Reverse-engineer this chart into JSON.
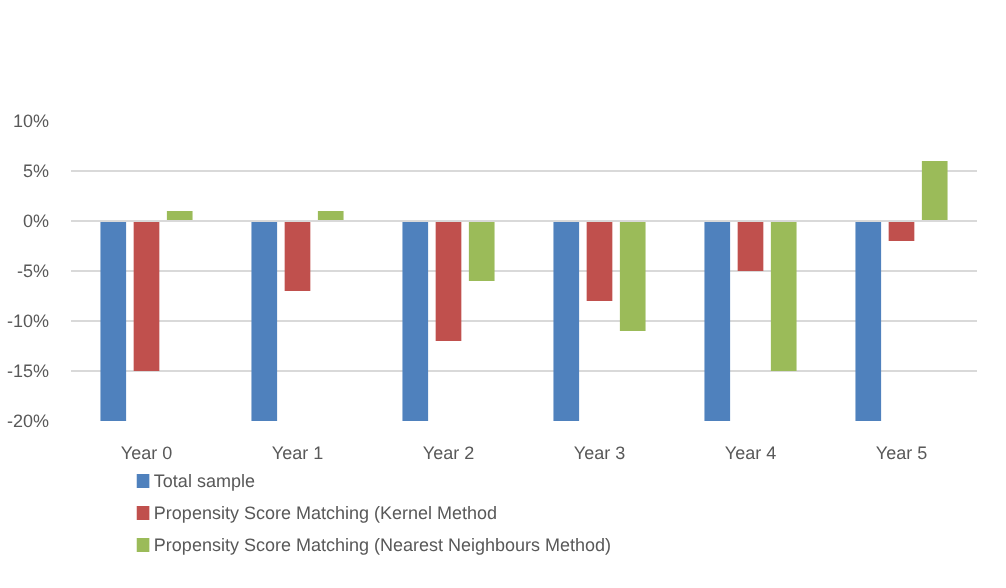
{
  "chart_data": {
    "type": "bar",
    "categories": [
      "Year 0",
      "Year 1",
      "Year 2",
      "Year 3",
      "Year 4",
      "Year 5"
    ],
    "series": [
      {
        "name": "Total sample",
        "color": "#4f81bd",
        "values": [
          -20,
          -20,
          -20,
          -20,
          -20,
          -20
        ]
      },
      {
        "name": "Propensity Score Matching (Kernel Method",
        "color": "#c0504d",
        "values": [
          -15,
          -7,
          -12,
          -8,
          -5,
          -2
        ]
      },
      {
        "name": "Propensity Score Matching (Nearest Neighbours Method)",
        "color": "#9bbb59",
        "values": [
          1,
          1,
          -6,
          -11,
          -15,
          6
        ]
      }
    ],
    "ylim": [
      -20,
      10
    ],
    "yticks": [
      {
        "value": -20,
        "label": "-20%"
      },
      {
        "value": -15,
        "label": "-15%"
      },
      {
        "value": -10,
        "label": "-10%"
      },
      {
        "value": -5,
        "label": "-5%"
      },
      {
        "value": 0,
        "label": "0%"
      },
      {
        "value": 5,
        "label": "5%"
      },
      {
        "value": 10,
        "label": "10%"
      }
    ],
    "grid": "y",
    "legend": "bottom left"
  }
}
